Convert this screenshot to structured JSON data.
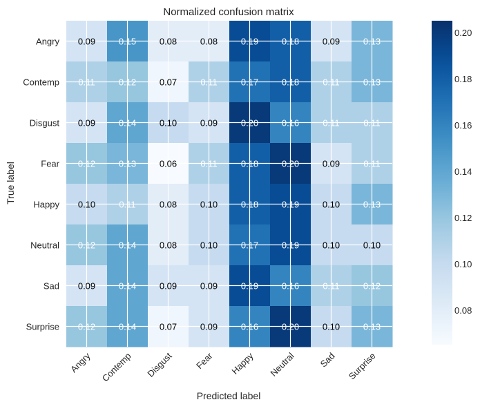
{
  "chart_data": {
    "type": "heatmap",
    "title": "Normalized confusion matrix",
    "xlabel": "Predicted label",
    "ylabel": "True label",
    "x_categories": [
      "Angry",
      "Contemp",
      "Disgust",
      "Fear",
      "Happy",
      "Neutral",
      "Sad",
      "Surprise"
    ],
    "y_categories": [
      "Angry",
      "Contemp",
      "Disgust",
      "Fear",
      "Happy",
      "Neutral",
      "Sad",
      "Surprise"
    ],
    "values": [
      [
        0.09,
        0.15,
        0.08,
        0.08,
        0.19,
        0.18,
        0.09,
        0.13
      ],
      [
        0.11,
        0.12,
        0.07,
        0.11,
        0.17,
        0.18,
        0.11,
        0.13
      ],
      [
        0.09,
        0.14,
        0.1,
        0.09,
        0.2,
        0.16,
        0.11,
        0.11
      ],
      [
        0.12,
        0.13,
        0.06,
        0.11,
        0.18,
        0.2,
        0.09,
        0.11
      ],
      [
        0.1,
        0.11,
        0.08,
        0.1,
        0.18,
        0.19,
        0.1,
        0.13
      ],
      [
        0.12,
        0.14,
        0.08,
        0.1,
        0.17,
        0.19,
        0.1,
        0.1
      ],
      [
        0.09,
        0.14,
        0.09,
        0.09,
        0.19,
        0.16,
        0.11,
        0.12
      ],
      [
        0.12,
        0.14,
        0.07,
        0.09,
        0.16,
        0.2,
        0.1,
        0.13
      ]
    ],
    "value_format": "0.00",
    "colormap": "Blues",
    "color_range": [
      0.065,
      0.205
    ],
    "colorbar_ticks": [
      0.08,
      0.1,
      0.12,
      0.14,
      0.16,
      0.18,
      0.2
    ],
    "grid": true,
    "grid_color": "#ffffff"
  }
}
